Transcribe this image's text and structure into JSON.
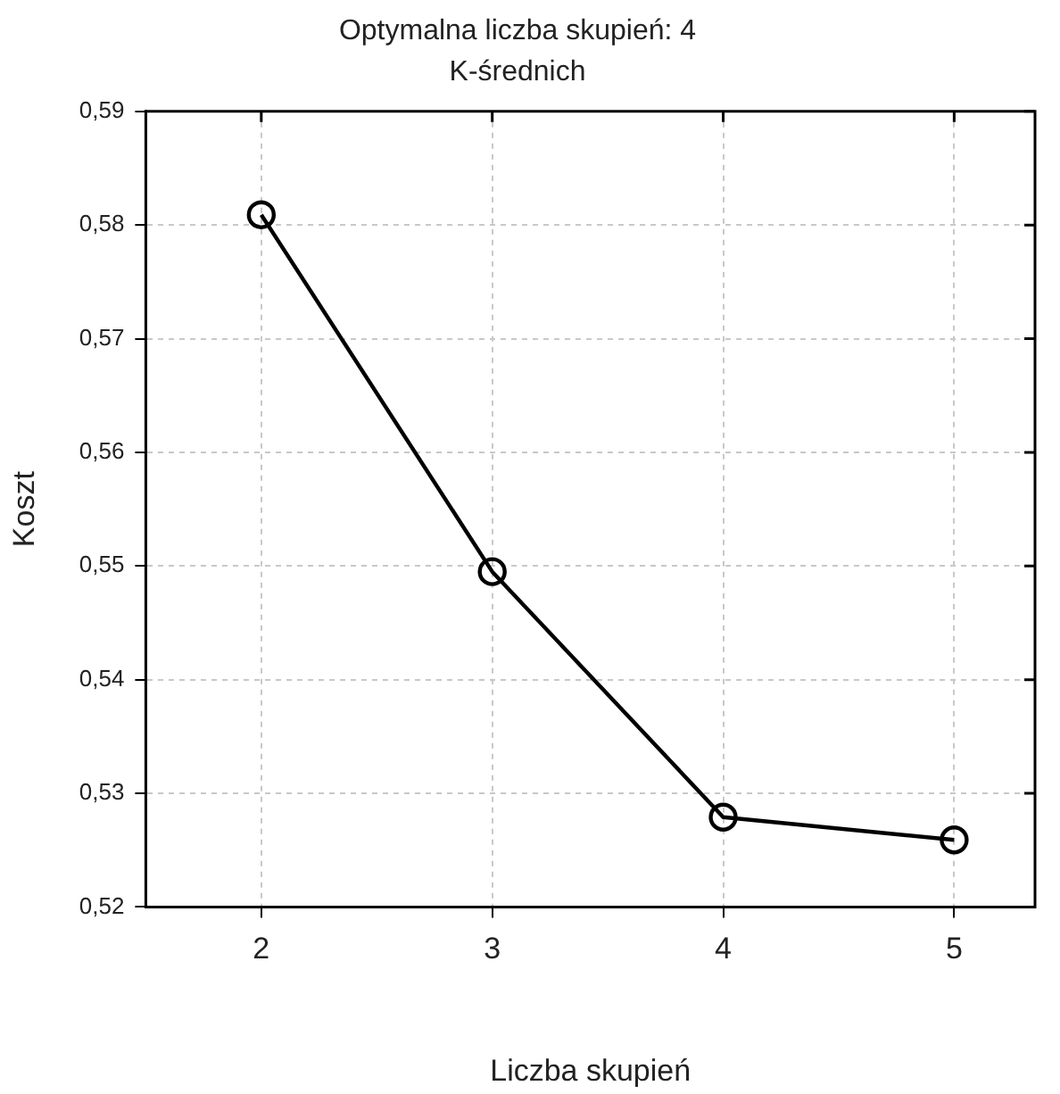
{
  "chart_data": {
    "type": "line",
    "title": "Optymalna liczba skupień: 4",
    "subtitle": "K-średnich",
    "xlabel": "Liczba skupień",
    "ylabel": "Koszt",
    "x": [
      2,
      3,
      4,
      5
    ],
    "series": [
      {
        "color": "#000000",
        "values": [
          0.5809,
          0.5495,
          0.5279,
          0.5259
        ]
      }
    ],
    "xlim": [
      1.5,
      5.35
    ],
    "xticks": [
      2,
      3,
      4,
      5
    ],
    "ylim": [
      0.52,
      0.59
    ],
    "yticks": [
      {
        "value": 0.52,
        "label": "0,52"
      },
      {
        "value": 0.53,
        "label": "0,53"
      },
      {
        "value": 0.54,
        "label": "0,54"
      },
      {
        "value": 0.55,
        "label": "0,55"
      },
      {
        "value": 0.56,
        "label": "0,56"
      },
      {
        "value": 0.57,
        "label": "0,57"
      },
      {
        "value": 0.58,
        "label": "0,58"
      },
      {
        "value": 0.59,
        "label": "0,59"
      }
    ],
    "grid": true,
    "legend": false,
    "marker": "circle",
    "line_style": "solid"
  }
}
